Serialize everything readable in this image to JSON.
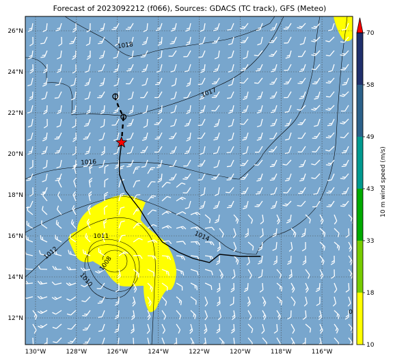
{
  "title": "Forecast of 2023092212 (f066), Sources: GDACS (TC track), GFS (Meteo)",
  "map": {
    "lon_range": [
      -130.5,
      -114.5
    ],
    "lat_range": [
      10.7,
      26.7
    ],
    "lon_ticks": [
      {
        "value": -130,
        "label": "130°W"
      },
      {
        "value": -128,
        "label": "128°W"
      },
      {
        "value": -126,
        "label": "126°W"
      },
      {
        "value": -124,
        "label": "124°W"
      },
      {
        "value": -122,
        "label": "122°W"
      },
      {
        "value": -120,
        "label": "120°W"
      },
      {
        "value": -118,
        "label": "118°W"
      },
      {
        "value": -116,
        "label": "116°W"
      }
    ],
    "lat_ticks": [
      {
        "value": 12,
        "label": "12°N"
      },
      {
        "value": 14,
        "label": "14°N"
      },
      {
        "value": 16,
        "label": "16°N"
      },
      {
        "value": 18,
        "label": "18°N"
      },
      {
        "value": 20,
        "label": "20°N"
      },
      {
        "value": 22,
        "label": "22°N"
      },
      {
        "value": 24,
        "label": "24°N"
      },
      {
        "value": 26,
        "label": "26°N"
      }
    ],
    "grid": true,
    "ocean_color": "#78a6cd",
    "isobar_labels": [
      {
        "text": "1018",
        "lon": -125.6,
        "lat": 25.2,
        "angle": -8
      },
      {
        "text": "1017",
        "lon": -121.5,
        "lat": 22.9,
        "angle": -22
      },
      {
        "text": "1016",
        "lon": -127.4,
        "lat": 19.5,
        "angle": -4
      },
      {
        "text": "1014",
        "lon": -121.9,
        "lat": 15.9,
        "angle": 24
      },
      {
        "text": "1012",
        "lon": -129.2,
        "lat": 15.1,
        "angle": -40
      },
      {
        "text": "1011",
        "lon": -126.8,
        "lat": 15.9,
        "angle": 0
      },
      {
        "text": "1010",
        "lon": -127.6,
        "lat": 13.8,
        "angle": 50
      },
      {
        "text": "1008",
        "lon": -126.5,
        "lat": 14.6,
        "angle": -55
      },
      {
        "text": "0",
        "lon": -114.6,
        "lat": 12.2,
        "angle": 0
      }
    ],
    "tc_track": {
      "past": [
        [
          -119.0,
          15.0
        ],
        [
          -120.0,
          15.0
        ],
        [
          -121.0,
          15.1
        ],
        [
          -121.5,
          14.7
        ],
        [
          -122.3,
          14.9
        ],
        [
          -123.0,
          15.2
        ],
        [
          -123.8,
          15.7
        ],
        [
          -124.4,
          16.5
        ],
        [
          -124.9,
          17.3
        ],
        [
          -125.6,
          18.2
        ],
        [
          -125.9,
          19.0
        ],
        [
          -125.9,
          19.7
        ],
        [
          -125.85,
          20.1
        ],
        [
          -125.8,
          20.5
        ]
      ],
      "forecast": [
        [
          -125.8,
          20.5
        ],
        [
          -125.75,
          21.2
        ],
        [
          -125.7,
          21.8
        ],
        [
          -125.9,
          22.2
        ],
        [
          -126.1,
          22.7
        ]
      ],
      "current_position": [
        -125.8,
        20.55
      ],
      "forecast_points": [
        [
          -125.7,
          21.8
        ],
        [
          -126.1,
          22.8
        ]
      ],
      "marker_color": "#ff0000"
    }
  },
  "colorbar": {
    "label": "10 m wind speed (m/s)",
    "ticks": [
      "10",
      "18",
      "33",
      "43",
      "49",
      "58",
      "70"
    ],
    "colors": [
      "#ffff00",
      "#77cc00",
      "#00aa00",
      "#00998f",
      "#2b6089",
      "#1f2f6c"
    ],
    "extend_color": "#ff0000"
  }
}
